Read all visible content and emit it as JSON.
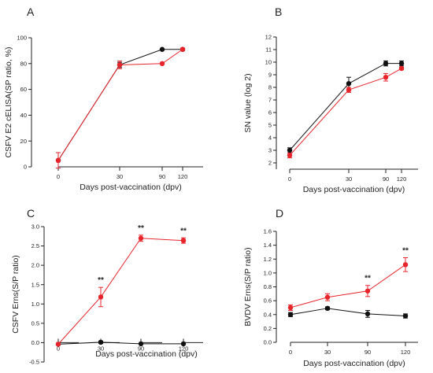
{
  "chart_data": [
    {
      "panel": "A",
      "type": "line",
      "xlabel": "Days post-vaccination (dpv)",
      "ylabel": "CSFV E2 cELISA(SP ratio, %)",
      "x": [
        0,
        30,
        90,
        120
      ],
      "xticks": [
        "0",
        "30",
        "90",
        "120"
      ],
      "ylim": [
        0,
        100
      ],
      "yticks": [
        "0",
        "20",
        "40",
        "60",
        "80",
        "100"
      ],
      "series": [
        {
          "color": "#111111",
          "values": [
            5,
            79,
            91,
            91
          ],
          "err": [
            0,
            2,
            0,
            0
          ]
        },
        {
          "color": "#e8242b",
          "values": [
            5,
            79,
            80,
            91
          ],
          "err": [
            6,
            3,
            0,
            1
          ]
        }
      ],
      "annotations": []
    },
    {
      "panel": "B",
      "type": "line",
      "xlabel": "Days post-vaccination (dpv)",
      "ylabel": "SN value (log 2)",
      "x": [
        0,
        30,
        90,
        120
      ],
      "xticks": [
        "0",
        "30",
        "90",
        "120"
      ],
      "ylim": [
        1.5,
        12
      ],
      "yticks": [
        "2",
        "3",
        "4",
        "5",
        "6",
        "7",
        "8",
        "9",
        "10",
        "11",
        "12"
      ],
      "series": [
        {
          "color": "#111111",
          "values": [
            3.0,
            8.3,
            9.9,
            9.9
          ],
          "err": [
            0.2,
            0.5,
            0.2,
            0.2
          ]
        },
        {
          "color": "#e8242b",
          "values": [
            2.6,
            7.8,
            8.8,
            9.5
          ],
          "err": [
            0.2,
            0.2,
            0.3,
            0.1
          ]
        }
      ],
      "annotations": []
    },
    {
      "panel": "C",
      "type": "line",
      "xlabel": "Days post-vaccination (dpv)",
      "ylabel": "CSFV Erns(S/P ratio)",
      "x": [
        0,
        30,
        90,
        120
      ],
      "xticks": [
        "0",
        "30",
        "90",
        "120"
      ],
      "ylim": [
        -0.5,
        3.0
      ],
      "yticks": [
        "-0.5",
        "0.0",
        "0.5",
        "1.0",
        "1.5",
        "2.0",
        "2.5",
        "3.0"
      ],
      "series": [
        {
          "color": "#111111",
          "values": [
            -0.04,
            0.01,
            -0.03,
            -0.03
          ],
          "err": [
            0,
            0.03,
            0,
            0
          ]
        },
        {
          "color": "#e8242b",
          "values": [
            -0.04,
            1.18,
            2.7,
            2.64
          ],
          "err": [
            0,
            0.25,
            0.08,
            0.07
          ]
        }
      ],
      "annotations": [
        {
          "x": 30,
          "text": "**"
        },
        {
          "x": 90,
          "text": "**"
        },
        {
          "x": 120,
          "text": "**"
        }
      ]
    },
    {
      "panel": "D",
      "type": "line",
      "xlabel": "Days post-vaccination (dpv)",
      "ylabel": "BVDV Erns(S/P ratio)",
      "x": [
        0,
        30,
        90,
        120
      ],
      "xticks": [
        "0",
        "30",
        "90",
        "120"
      ],
      "ylim": [
        0,
        1.6
      ],
      "yticks": [
        "0.0",
        "0.2",
        "0.4",
        "0.6",
        "0.8",
        "1.0",
        "1.2",
        "1.4",
        "1.6"
      ],
      "series": [
        {
          "color": "#111111",
          "values": [
            0.4,
            0.49,
            0.41,
            0.38
          ],
          "err": [
            0.03,
            0.02,
            0.05,
            0.03
          ]
        },
        {
          "color": "#e8242b",
          "values": [
            0.5,
            0.65,
            0.74,
            1.12
          ],
          "err": [
            0.04,
            0.05,
            0.08,
            0.1
          ]
        }
      ],
      "annotations": [
        {
          "x": 90,
          "text": "**"
        },
        {
          "x": 120,
          "text": "**"
        }
      ]
    }
  ]
}
